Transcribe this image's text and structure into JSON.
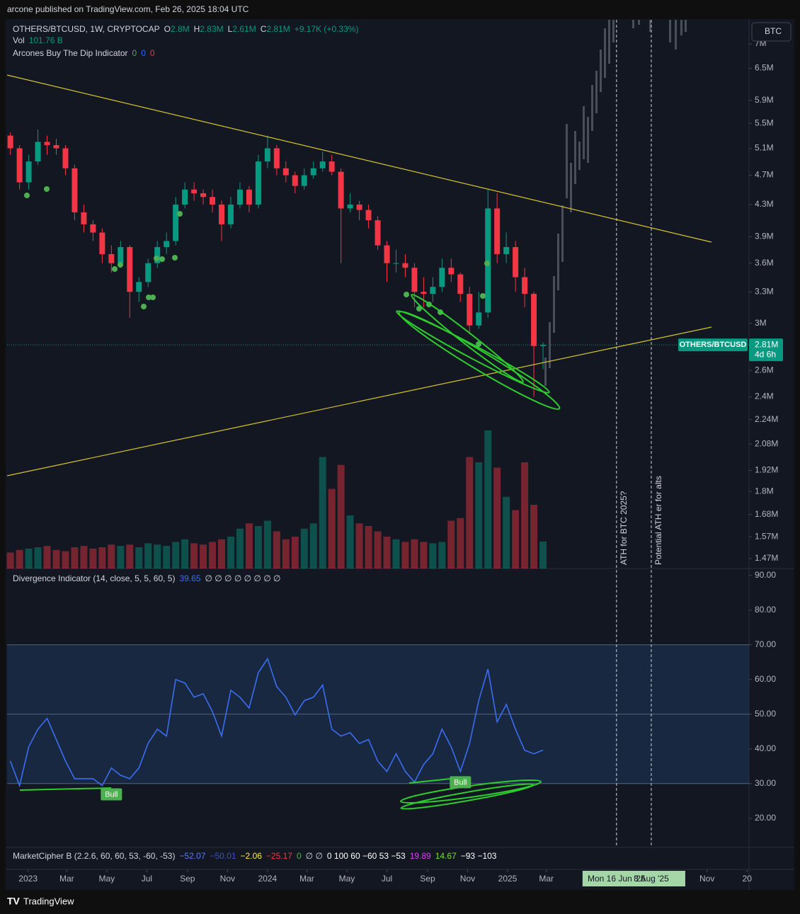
{
  "header": {
    "publish": "arcone published on TradingView.com, Feb 26, 2025 18:04 UTC"
  },
  "legend": {
    "symbol": "OTHERS/BTCUSD, 1W, CRYPTOCAP",
    "ohlc": [
      {
        "label": "O",
        "value": "2.8M"
      },
      {
        "label": "H",
        "value": "2.83M"
      },
      {
        "label": "L",
        "value": "2.61M"
      },
      {
        "label": "C",
        "value": "2.81M"
      }
    ],
    "change": "+9.17K (+0.33%)",
    "vol_label": "Vol",
    "vol_value": "101.76 B",
    "indicator": "Arcones Buy The Dip Indicator",
    "indicator_values": [
      {
        "text": "0",
        "color": "#4caf50"
      },
      {
        "text": "0",
        "color": "#2962ff"
      },
      {
        "text": "0",
        "color": "#f23645"
      }
    ]
  },
  "currency_button": "BTC",
  "footer": {
    "brand": "TradingView"
  },
  "chart_data": [
    {
      "type": "candlestick",
      "log_scale": true,
      "grid": false,
      "up_color": "#089981",
      "down_color": "#f23645",
      "x": [
        "2022-12-05",
        "2022-12-19",
        "2023-01-02",
        "2023-01-16",
        "2023-01-30",
        "2023-02-13",
        "2023-02-27",
        "2023-03-13",
        "2023-03-27",
        "2023-04-10",
        "2023-04-24",
        "2023-05-08",
        "2023-05-22",
        "2023-06-05",
        "2023-06-19",
        "2023-07-03",
        "2023-07-17",
        "2023-07-31",
        "2023-08-14",
        "2023-08-28",
        "2023-09-11",
        "2023-09-25",
        "2023-10-09",
        "2023-10-23",
        "2023-11-06",
        "2023-11-20",
        "2023-12-04",
        "2023-12-18",
        "2024-01-01",
        "2024-01-15",
        "2024-01-29",
        "2024-02-12",
        "2024-02-26",
        "2024-03-11",
        "2024-03-25",
        "2024-04-08",
        "2024-04-22",
        "2024-05-06",
        "2024-05-20",
        "2024-06-03",
        "2024-06-17",
        "2024-07-01",
        "2024-07-15",
        "2024-07-29",
        "2024-08-12",
        "2024-08-26",
        "2024-09-09",
        "2024-09-23",
        "2024-10-07",
        "2024-10-21",
        "2024-11-04",
        "2024-11-18",
        "2024-12-02",
        "2024-12-16",
        "2024-12-30",
        "2025-01-13",
        "2025-01-27",
        "2025-02-10",
        "2025-02-24"
      ],
      "open": [
        5.3,
        5.1,
        4.6,
        4.9,
        5.2,
        5.15,
        5.1,
        4.8,
        4.2,
        4.05,
        3.95,
        3.7,
        3.6,
        3.78,
        3.3,
        3.4,
        3.6,
        3.78,
        3.85,
        4.3,
        4.5,
        4.45,
        4.4,
        4.3,
        4.05,
        4.3,
        4.5,
        4.3,
        4.9,
        5.1,
        4.8,
        4.7,
        4.55,
        4.7,
        4.8,
        4.9,
        4.75,
        4.25,
        4.3,
        4.23,
        4.1,
        3.8,
        3.6,
        3.6,
        3.55,
        3.3,
        3.28,
        3.35,
        3.55,
        3.48,
        3.28,
        2.98,
        3.1,
        4.25,
        3.7,
        3.78,
        3.45,
        3.28,
        2.8
      ],
      "high": [
        5.35,
        5.15,
        5.0,
        5.4,
        5.3,
        5.25,
        5.15,
        4.85,
        4.3,
        4.1,
        4.0,
        3.8,
        3.85,
        3.8,
        3.45,
        3.65,
        3.85,
        3.95,
        4.4,
        4.6,
        4.6,
        4.5,
        4.5,
        4.35,
        4.4,
        4.6,
        4.55,
        5.0,
        5.3,
        5.15,
        4.9,
        4.75,
        4.8,
        4.9,
        5.05,
        5.0,
        4.8,
        4.45,
        4.35,
        4.3,
        4.15,
        3.85,
        3.75,
        3.7,
        3.6,
        3.45,
        3.45,
        3.65,
        3.65,
        3.5,
        3.35,
        3.3,
        4.5,
        4.45,
        3.95,
        3.85,
        3.55,
        3.3,
        2.83
      ],
      "low": [
        5.0,
        4.5,
        4.5,
        4.85,
        5.0,
        5.0,
        4.7,
        4.1,
        3.95,
        3.85,
        3.6,
        3.5,
        3.55,
        3.05,
        3.2,
        3.35,
        3.55,
        3.7,
        3.8,
        4.25,
        4.35,
        4.3,
        4.2,
        3.85,
        4.0,
        4.25,
        4.2,
        4.25,
        4.8,
        4.7,
        4.6,
        4.45,
        4.5,
        4.65,
        4.75,
        4.7,
        3.6,
        4.2,
        4.1,
        4.0,
        3.75,
        3.4,
        3.5,
        3.45,
        3.15,
        3.15,
        3.2,
        3.3,
        3.4,
        3.2,
        2.9,
        2.95,
        3.05,
        3.6,
        3.6,
        3.3,
        3.15,
        2.4,
        2.61
      ],
      "close": [
        5.1,
        4.6,
        4.9,
        5.2,
        5.15,
        5.1,
        4.8,
        4.2,
        4.05,
        3.95,
        3.7,
        3.6,
        3.78,
        3.3,
        3.4,
        3.6,
        3.78,
        3.85,
        4.3,
        4.5,
        4.45,
        4.4,
        4.3,
        4.05,
        4.3,
        4.5,
        4.3,
        4.9,
        5.1,
        4.8,
        4.7,
        4.55,
        4.7,
        4.8,
        4.9,
        4.75,
        4.25,
        4.3,
        4.23,
        4.1,
        3.8,
        3.6,
        3.6,
        3.55,
        3.3,
        3.28,
        3.35,
        3.55,
        3.48,
        3.28,
        2.98,
        3.1,
        4.25,
        3.7,
        3.78,
        3.45,
        3.28,
        2.8,
        2.81
      ],
      "ylim": [
        1.426,
        7.53
      ],
      "yticks": [
        {
          "value": 7,
          "label": "7M"
        },
        {
          "value": 6.5,
          "label": "6.5M"
        },
        {
          "value": 5.9,
          "label": "5.9M"
        },
        {
          "value": 5.5,
          "label": "5.5M"
        },
        {
          "value": 5.1,
          "label": "5.1M"
        },
        {
          "value": 4.7,
          "label": "4.7M"
        },
        {
          "value": 4.3,
          "label": "4.3M"
        },
        {
          "value": 3.9,
          "label": "3.9M"
        },
        {
          "value": 3.6,
          "label": "3.6M"
        },
        {
          "value": 3.3,
          "label": "3.3M"
        },
        {
          "value": 3,
          "label": "3M"
        },
        {
          "value": 2.6,
          "label": "2.6M"
        },
        {
          "value": 2.4,
          "label": "2.4M"
        },
        {
          "value": 2.24,
          "label": "2.24M"
        },
        {
          "value": 2.08,
          "label": "2.08M"
        },
        {
          "value": 1.92,
          "label": "1.92M"
        },
        {
          "value": 1.8,
          "label": "1.8M"
        },
        {
          "value": 1.68,
          "label": "1.68M"
        },
        {
          "value": 1.57,
          "label": "1.57M"
        },
        {
          "value": 1.47,
          "label": "1.47M"
        }
      ],
      "xlim": [
        "2022-11-30",
        "2026-01-04"
      ],
      "xticks": [
        {
          "value": "2023-01-01",
          "label": "2023"
        },
        {
          "value": "2023-03-01",
          "label": "Mar"
        },
        {
          "value": "2023-05-01",
          "label": "May"
        },
        {
          "value": "2023-07-01",
          "label": "Jul"
        },
        {
          "value": "2023-09-01",
          "label": "Sep"
        },
        {
          "value": "2023-11-01",
          "label": "Nov"
        },
        {
          "value": "2024-01-01",
          "label": "2024"
        },
        {
          "value": "2024-03-01",
          "label": "Mar"
        },
        {
          "value": "2024-05-01",
          "label": "May"
        },
        {
          "value": "2024-07-01",
          "label": "Jul"
        },
        {
          "value": "2024-09-01",
          "label": "Sep"
        },
        {
          "value": "2024-11-01",
          "label": "Nov"
        },
        {
          "value": "2025-01-01",
          "label": "2025"
        },
        {
          "value": "2025-03-01",
          "label": "Mar"
        },
        {
          "value": "2025-11-01",
          "label": "Nov"
        },
        {
          "value": "2026-01-01",
          "label": "20"
        }
      ],
      "volume": {
        "values": [
          60,
          70,
          75,
          80,
          85,
          70,
          65,
          80,
          85,
          75,
          80,
          90,
          85,
          90,
          80,
          95,
          90,
          85,
          100,
          110,
          95,
          90,
          100,
          110,
          120,
          150,
          170,
          160,
          180,
          140,
          110,
          120,
          150,
          170,
          420,
          300,
          390,
          200,
          170,
          160,
          140,
          120,
          110,
          100,
          110,
          100,
          95,
          100,
          180,
          190,
          420,
          400,
          520,
          380,
          270,
          220,
          400,
          240,
          101.76
        ],
        "ylim": [
          0,
          600
        ]
      },
      "last_price": {
        "symbol": "OTHERS/BTCUSD",
        "label": "2.81M",
        "countdown": "4d 6h"
      },
      "annotations": [
        {
          "x": "2025-06-16",
          "label": "Mon 16 Jun '25",
          "note": "ATH for BTC 2025?"
        },
        {
          "x": "2025-08-08",
          "label": "8 Aug '25",
          "note": "Potential ATH er for alts"
        }
      ]
    },
    {
      "type": "line",
      "title": "Divergence Indicator (14, close, 5, 5, 60, 5)",
      "value_label": "39.65",
      "na_values": "∅ ∅ ∅ ∅ ∅ ∅ ∅ ∅",
      "color": "#3b6df0",
      "grid": false,
      "x": [
        "2022-12-05",
        "2022-12-19",
        "2023-01-02",
        "2023-01-16",
        "2023-01-30",
        "2023-02-13",
        "2023-02-27",
        "2023-03-13",
        "2023-03-27",
        "2023-04-10",
        "2023-04-24",
        "2023-05-08",
        "2023-05-22",
        "2023-06-05",
        "2023-06-19",
        "2023-07-03",
        "2023-07-17",
        "2023-07-31",
        "2023-08-14",
        "2023-08-28",
        "2023-09-11",
        "2023-09-25",
        "2023-10-09",
        "2023-10-23",
        "2023-11-06",
        "2023-11-20",
        "2023-12-04",
        "2023-12-18",
        "2024-01-01",
        "2024-01-15",
        "2024-01-29",
        "2024-02-12",
        "2024-02-26",
        "2024-03-11",
        "2024-03-25",
        "2024-04-08",
        "2024-04-22",
        "2024-05-06",
        "2024-05-20",
        "2024-06-03",
        "2024-06-17",
        "2024-07-01",
        "2024-07-15",
        "2024-07-29",
        "2024-08-12",
        "2024-08-26",
        "2024-09-09",
        "2024-09-23",
        "2024-10-07",
        "2024-10-21",
        "2024-11-04",
        "2024-11-18",
        "2024-12-02",
        "2024-12-16",
        "2024-12-30",
        "2025-01-13",
        "2025-01-27",
        "2025-02-10",
        "2025-02-24"
      ],
      "values": [
        36.5,
        29.4,
        40.6,
        45.7,
        48.8,
        42.7,
        36.5,
        31.4,
        31.4,
        31.4,
        29.4,
        34.5,
        32.4,
        31.4,
        34.5,
        41.6,
        45.7,
        43.7,
        60,
        59,
        54.9,
        55.9,
        50.8,
        43.7,
        56.9,
        54.9,
        51.8,
        62,
        66,
        58,
        54.9,
        49.8,
        53.9,
        54.9,
        58.4,
        45.7,
        43.7,
        44.7,
        41.6,
        42.7,
        36.5,
        33.5,
        38.6,
        33.5,
        30.4,
        35.5,
        38.6,
        45.7,
        40.6,
        33.5,
        41.6,
        53.9,
        63,
        47.8,
        52.8,
        45.7,
        39.6,
        38.6,
        39.65
      ],
      "ylim": [
        12,
        92
      ],
      "yticks": [
        {
          "value": 20,
          "label": "20.00"
        },
        {
          "value": 30,
          "label": "30.00"
        },
        {
          "value": 40,
          "label": "40.00"
        },
        {
          "value": 50,
          "label": "50.00"
        },
        {
          "value": 60,
          "label": "60.00"
        },
        {
          "value": 70,
          "label": "70.00"
        },
        {
          "value": 80,
          "label": "80.00"
        },
        {
          "value": 90,
          "label": "90.00"
        }
      ],
      "band": [
        30,
        70
      ],
      "hlines": [
        50
      ],
      "signals": [
        {
          "x": "2023-05-08",
          "y": 27,
          "label": "Bull"
        },
        {
          "x": "2024-10-21",
          "y": 30.5,
          "label": "Bull"
        }
      ]
    }
  ],
  "market_cipher": {
    "title": "MarketCipher B (2.2.6, 60, 60, 53, -60, -53)",
    "items": [
      {
        "text": "−52.07",
        "color": "#5b7cf6"
      },
      {
        "text": "−50.01",
        "color": "#3f51b5"
      },
      {
        "text": "−2.06",
        "color": "#ffeb3b"
      },
      {
        "text": "−25.17",
        "color": "#f23645"
      },
      {
        "text": "0",
        "color": "#4caf50"
      },
      {
        "text": "∅ ∅",
        "color": "#d1d4dc"
      },
      {
        "text": "0 100 60 −60 53 −53",
        "color": "#ffffff"
      },
      {
        "text": "19.89",
        "color": "#e040fb"
      },
      {
        "text": "14.67",
        "color": "#7cdc3a"
      },
      {
        "text": "−93 −103",
        "color": "#ffffff"
      }
    ]
  }
}
